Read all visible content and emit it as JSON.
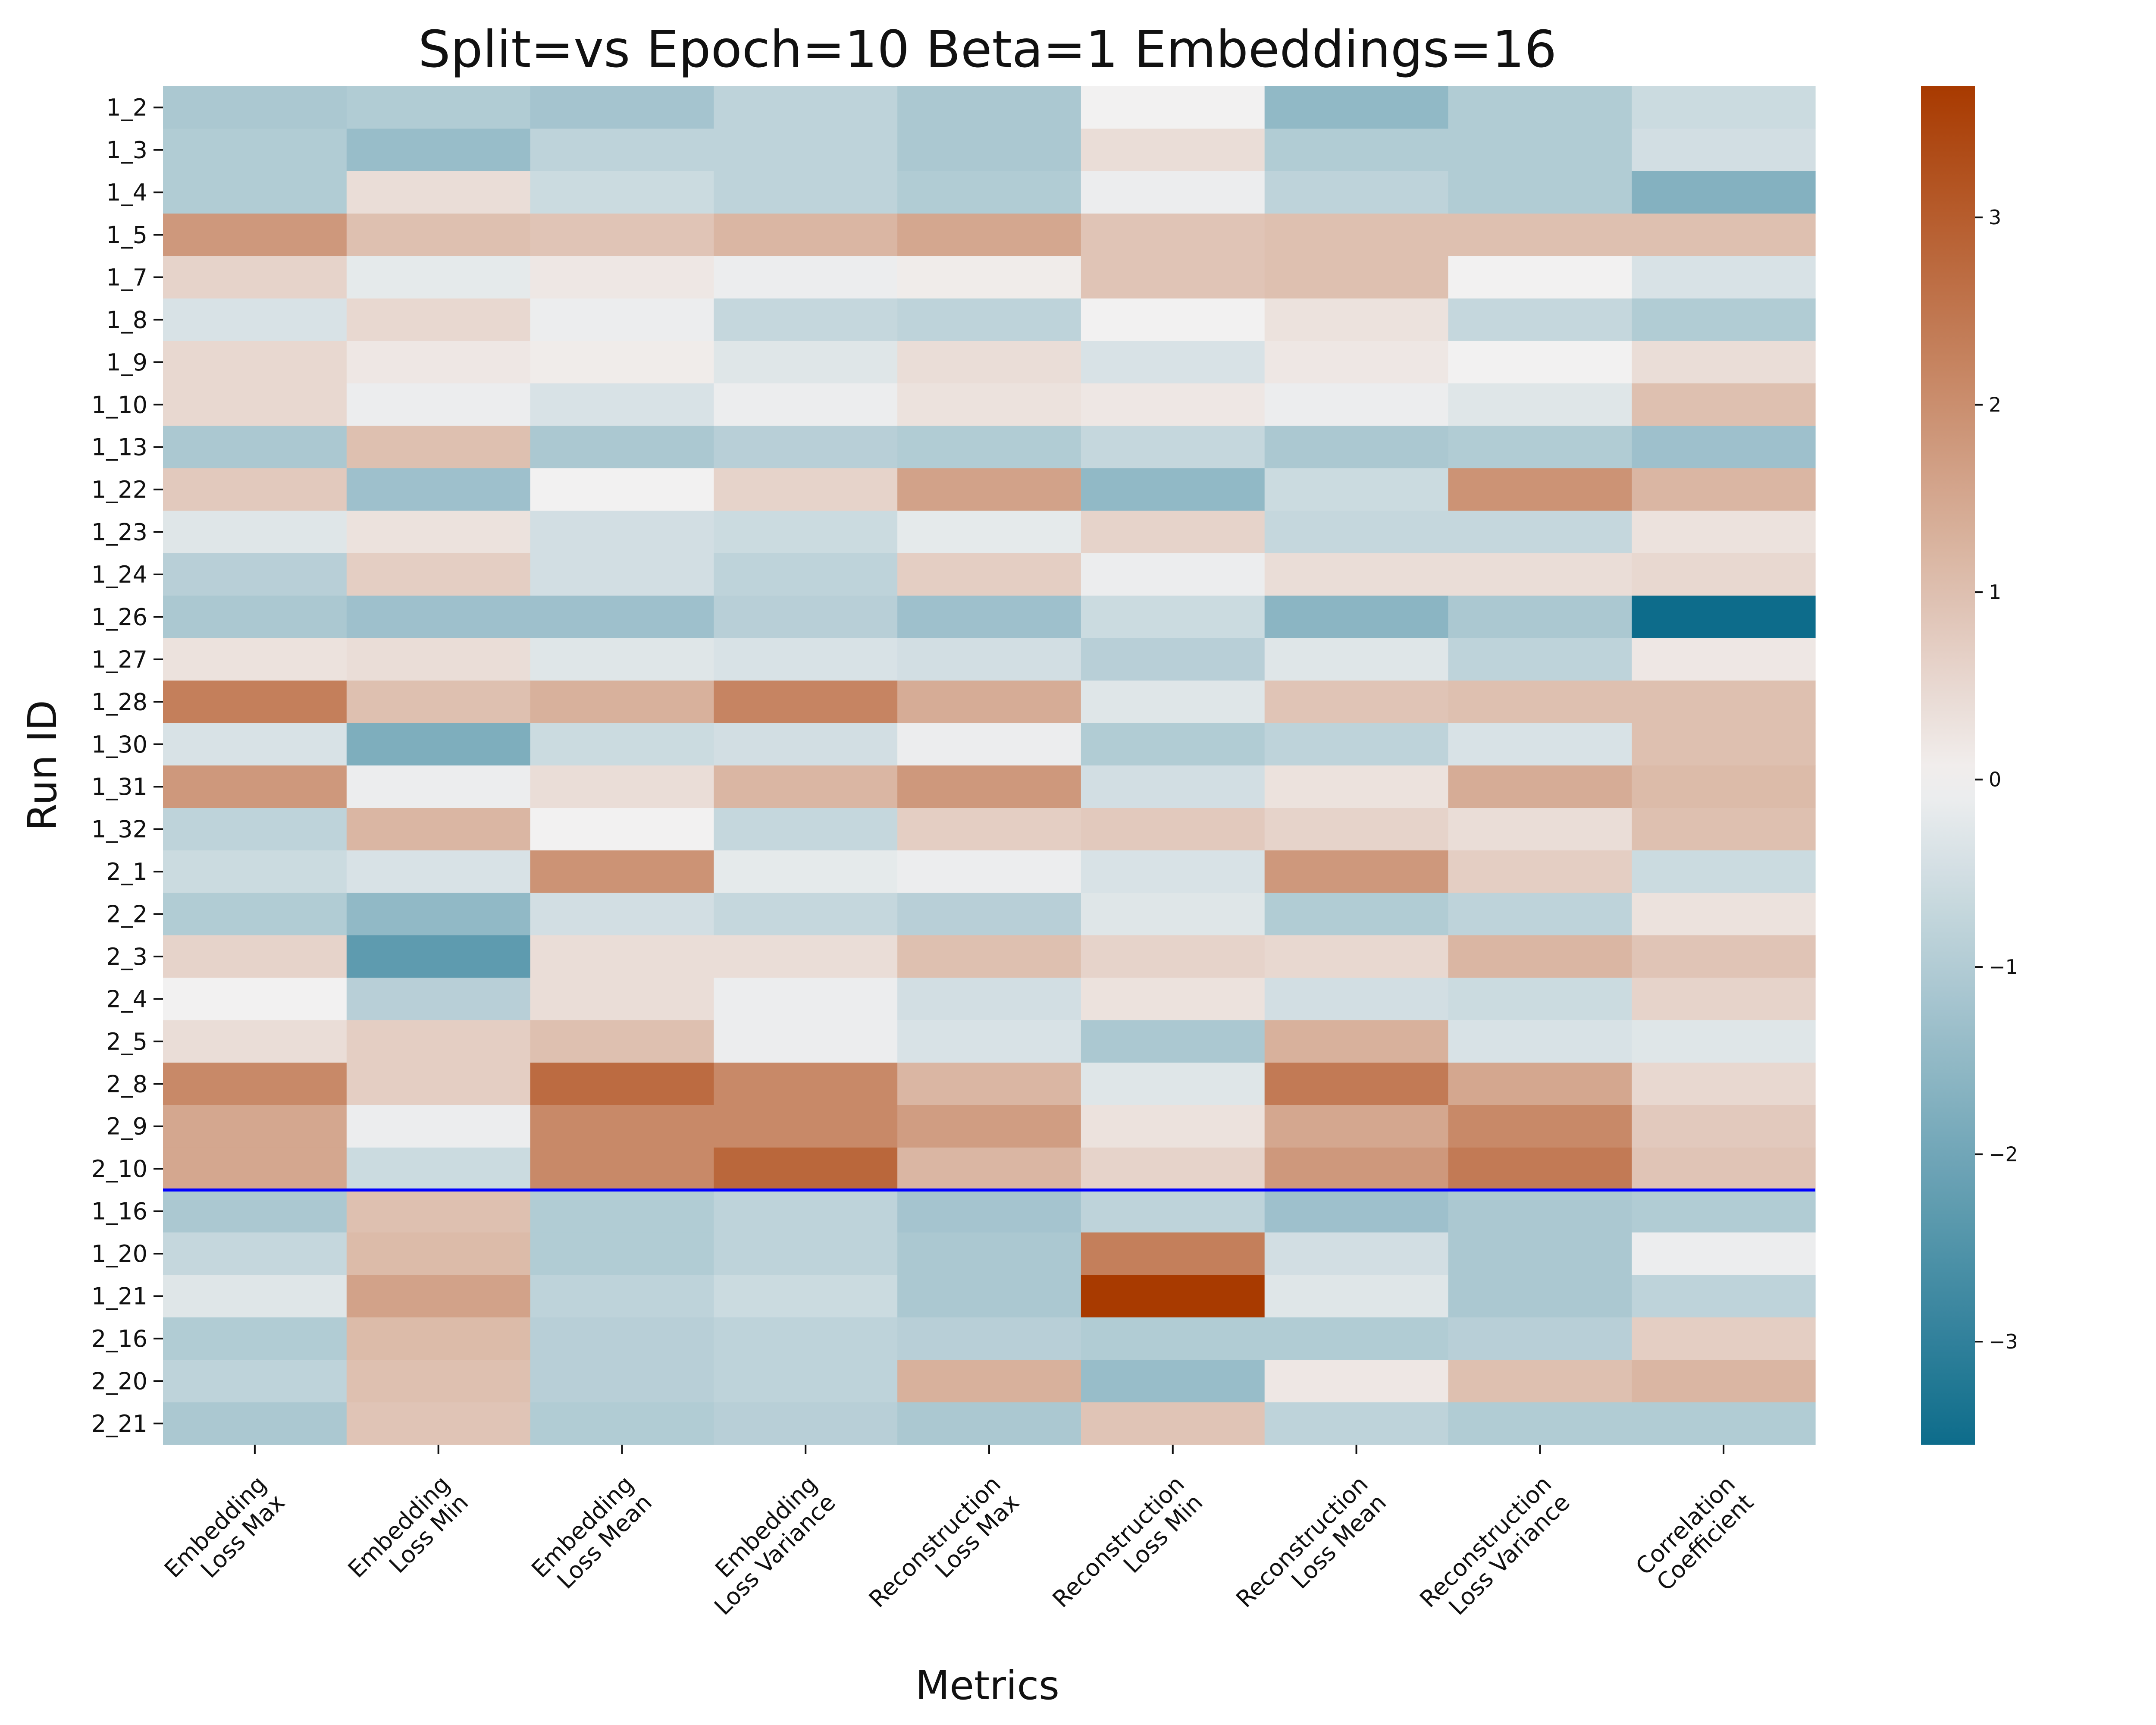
{
  "chart_data": {
    "type": "heatmap",
    "title": "Split=vs Epoch=10 Beta=1 Embeddings=16",
    "xlabel": "Metrics",
    "ylabel": "Run ID",
    "x_categories": [
      [
        "Embedding",
        "Loss Max"
      ],
      [
        "Embedding",
        "Loss Min"
      ],
      [
        "Embedding",
        "Loss Mean"
      ],
      [
        "Embedding",
        "Loss Variance"
      ],
      [
        "Reconstruction",
        "Loss Max"
      ],
      [
        "Reconstruction",
        "Loss Min"
      ],
      [
        "Reconstruction",
        "Loss Mean"
      ],
      [
        "Reconstruction",
        "Loss Variance"
      ],
      [
        "Correlation",
        "Coefficient"
      ]
    ],
    "y_categories": [
      "1_2",
      "1_3",
      "1_4",
      "1_5",
      "1_7",
      "1_8",
      "1_9",
      "1_10",
      "1_13",
      "1_22",
      "1_23",
      "1_24",
      "1_26",
      "1_27",
      "1_28",
      "1_30",
      "1_31",
      "1_32",
      "2_1",
      "2_2",
      "2_3",
      "2_4",
      "2_5",
      "2_8",
      "2_9",
      "2_10",
      "1_16",
      "1_20",
      "1_21",
      "2_16",
      "2_20",
      "2_21"
    ],
    "values": [
      [
        -1.1,
        -1.0,
        -1.2,
        -0.8,
        -1.1,
        0.0,
        -1.5,
        -1.0,
        -0.6
      ],
      [
        -1.0,
        -1.4,
        -0.8,
        -0.8,
        -1.1,
        0.4,
        -1.0,
        -1.0,
        -0.5
      ],
      [
        -1.0,
        0.4,
        -0.6,
        -0.8,
        -1.0,
        -0.1,
        -0.8,
        -1.0,
        -1.7
      ],
      [
        1.8,
        1.0,
        0.9,
        1.2,
        1.5,
        0.9,
        1.0,
        1.0,
        1.0
      ],
      [
        0.6,
        -0.2,
        0.2,
        -0.1,
        0.1,
        0.9,
        1.0,
        0.0,
        -0.4
      ],
      [
        -0.4,
        0.5,
        -0.1,
        -0.7,
        -0.8,
        0.0,
        0.3,
        -0.7,
        -1.0
      ],
      [
        0.5,
        0.2,
        0.1,
        -0.3,
        0.4,
        -0.4,
        0.2,
        0.0,
        0.4
      ],
      [
        0.5,
        -0.1,
        -0.4,
        -0.1,
        0.3,
        0.2,
        -0.1,
        -0.3,
        1.0
      ],
      [
        -1.1,
        1.0,
        -1.1,
        -0.9,
        -1.0,
        -0.7,
        -1.1,
        -1.0,
        -1.3
      ],
      [
        0.8,
        -1.3,
        0.0,
        0.6,
        1.6,
        -1.5,
        -0.6,
        1.9,
        1.2
      ],
      [
        -0.3,
        0.3,
        -0.5,
        -0.6,
        -0.2,
        0.6,
        -0.7,
        -0.7,
        0.3
      ],
      [
        -0.9,
        0.7,
        -0.5,
        -0.8,
        0.7,
        -0.1,
        0.4,
        0.4,
        0.5
      ],
      [
        -1.1,
        -1.3,
        -1.3,
        -0.9,
        -1.3,
        -0.6,
        -1.6,
        -1.1,
        -3.6
      ],
      [
        0.3,
        0.4,
        -0.3,
        -0.4,
        -0.5,
        -0.9,
        -0.3,
        -0.8,
        0.2
      ],
      [
        2.3,
        1.0,
        1.3,
        2.2,
        1.4,
        -0.3,
        0.9,
        1.0,
        1.0
      ],
      [
        -0.4,
        -1.8,
        -0.6,
        -0.5,
        -0.1,
        -1.0,
        -0.8,
        -0.4,
        1.0
      ],
      [
        1.8,
        -0.1,
        0.4,
        1.2,
        1.8,
        -0.5,
        0.3,
        1.4,
        1.1
      ],
      [
        -0.8,
        1.2,
        0.0,
        -0.7,
        0.7,
        0.8,
        0.6,
        0.4,
        1.0
      ],
      [
        -0.6,
        -0.4,
        1.9,
        -0.2,
        -0.1,
        -0.4,
        1.8,
        0.7,
        -0.6
      ],
      [
        -1.0,
        -1.5,
        -0.5,
        -0.7,
        -0.9,
        -0.3,
        -1.0,
        -0.8,
        0.3
      ],
      [
        0.6,
        -2.3,
        0.4,
        0.4,
        1.0,
        0.6,
        0.5,
        1.2,
        0.9
      ],
      [
        0.0,
        -0.9,
        0.4,
        -0.1,
        -0.5,
        0.3,
        -0.5,
        -0.6,
        0.6
      ],
      [
        0.4,
        0.7,
        1.0,
        -0.1,
        -0.4,
        -1.1,
        1.3,
        -0.4,
        -0.3
      ],
      [
        2.1,
        0.7,
        2.7,
        2.1,
        1.2,
        -0.3,
        2.4,
        1.5,
        0.5
      ],
      [
        1.5,
        -0.1,
        2.1,
        2.1,
        1.7,
        0.3,
        1.5,
        2.1,
        0.8
      ],
      [
        1.5,
        -0.6,
        2.1,
        2.8,
        1.2,
        0.6,
        1.8,
        2.4,
        0.9
      ],
      [
        -1.1,
        1.0,
        -1.0,
        -0.8,
        -1.2,
        -0.8,
        -1.3,
        -1.1,
        -1.0
      ],
      [
        -0.7,
        1.1,
        -1.0,
        -0.8,
        -1.1,
        2.3,
        -0.5,
        -1.1,
        -0.1
      ],
      [
        -0.3,
        1.6,
        -0.8,
        -0.6,
        -1.1,
        3.7,
        -0.3,
        -1.1,
        -0.8
      ],
      [
        -1.0,
        1.1,
        -0.9,
        -0.8,
        -0.9,
        -1.0,
        -1.0,
        -0.9,
        0.7
      ],
      [
        -0.8,
        1.0,
        -0.9,
        -0.8,
        1.3,
        -1.4,
        0.2,
        1.0,
        1.2
      ],
      [
        -1.1,
        0.9,
        -1.0,
        -0.9,
        -1.1,
        0.9,
        -0.8,
        -1.0,
        -1.0
      ]
    ],
    "vmin": -3.55,
    "vmax": 3.7,
    "colormap": {
      "negative": "#0d6c8b",
      "center": "#f2f1f1",
      "positive": "#a83a00"
    },
    "colorbar_ticks": [
      3,
      2,
      1,
      0,
      -1,
      -2,
      -3
    ],
    "colorbar_tick_labels": [
      "3",
      "2",
      "1",
      "0",
      "−1",
      "−2",
      "−3"
    ],
    "separator_after_row": "2_10",
    "separator_color": "#0000ff",
    "grid": false
  }
}
